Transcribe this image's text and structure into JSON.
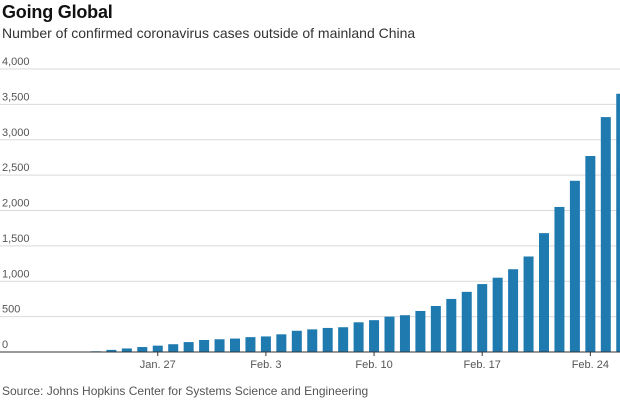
{
  "chart_data": {
    "type": "bar",
    "title": "Going Global",
    "subtitle": "Number of confirmed coronavirus cases outside of mainland China",
    "source": "Source: Johns Hopkins Center for Systems Science and Engineering",
    "xlabel": "",
    "ylabel": "",
    "ylim": [
      0,
      4000
    ],
    "yticks": [
      0,
      500,
      1000,
      1500,
      2000,
      2500,
      3000,
      3500,
      4000
    ],
    "ytick_labels": [
      "0",
      "500",
      "1,000",
      "1,500",
      "2,000",
      "2,500",
      "3,000",
      "3,500",
      "4,000"
    ],
    "xtick_labels": [
      {
        "index": 5,
        "label": "Jan. 27"
      },
      {
        "index": 12,
        "label": "Feb. 3"
      },
      {
        "index": 19,
        "label": "Feb. 10"
      },
      {
        "index": 26,
        "label": "Feb. 17"
      },
      {
        "index": 33,
        "label": "Feb. 24"
      }
    ],
    "grid": true,
    "bar_color": "#1f7ab0",
    "values": [
      5,
      10,
      30,
      50,
      70,
      90,
      110,
      140,
      170,
      180,
      190,
      210,
      220,
      250,
      300,
      320,
      340,
      350,
      420,
      450,
      500,
      520,
      580,
      650,
      750,
      850,
      960,
      1050,
      1170,
      1350,
      1680,
      2050,
      2420,
      2770,
      3320,
      3650
    ]
  }
}
